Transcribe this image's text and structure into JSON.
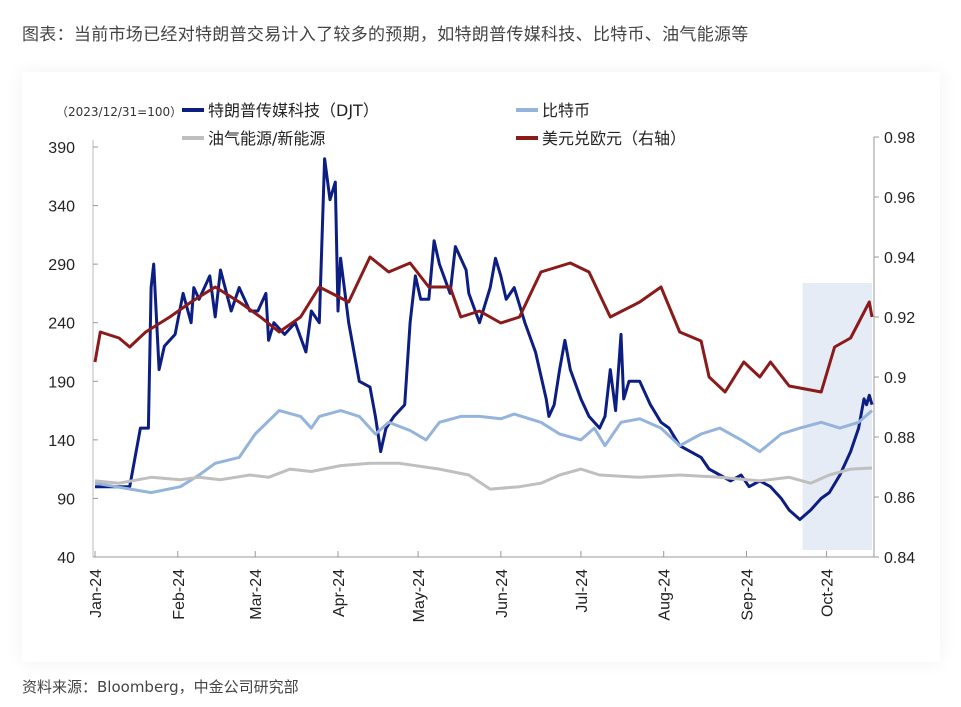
{
  "title": "图表：当前市场已经对特朗普交易计入了较多的预期，如特朗普传媒科技、比特币、油气能源等",
  "source": "资料来源：Bloomberg，中金公司研究部",
  "chart_data": {
    "type": "line",
    "base_note": "（2023/12/31=100）",
    "x_unit": "day of 2024",
    "xlim": [
      0,
      291
    ],
    "x_ticks": [
      {
        "day": 0,
        "label": "Jan-24"
      },
      {
        "day": 31,
        "label": "Feb-24"
      },
      {
        "day": 60,
        "label": "Mar-24"
      },
      {
        "day": 91,
        "label": "Apr-24"
      },
      {
        "day": 121,
        "label": "May-24"
      },
      {
        "day": 152,
        "label": "Jun-24"
      },
      {
        "day": 182,
        "label": "Jul-24"
      },
      {
        "day": 213,
        "label": "Aug-24"
      },
      {
        "day": 244,
        "label": "Sep-24"
      },
      {
        "day": 274,
        "label": "Oct-24"
      }
    ],
    "ylim_left": [
      40,
      390
    ],
    "yticks_left": [
      "390",
      "340",
      "290",
      "240",
      "190",
      "140",
      "90",
      "40"
    ],
    "ylim_right": [
      0.84,
      0.98
    ],
    "yticks_right": [
      "0.98",
      "0.96",
      "0.94",
      "0.92",
      "0.9",
      "0.88",
      "0.86",
      "0.84"
    ],
    "highlight_range_days": [
      265,
      291
    ],
    "series": [
      {
        "name": "特朗普传媒科技（DJT）",
        "axis": "left",
        "color": "#0d1e82",
        "points": [
          [
            0,
            100
          ],
          [
            13,
            100
          ],
          [
            17,
            150
          ],
          [
            20,
            150
          ],
          [
            21,
            270
          ],
          [
            22,
            290
          ],
          [
            24,
            200
          ],
          [
            26,
            220
          ],
          [
            30,
            230
          ],
          [
            33,
            265
          ],
          [
            36,
            240
          ],
          [
            37,
            270
          ],
          [
            39,
            260
          ],
          [
            43,
            280
          ],
          [
            45,
            245
          ],
          [
            47,
            285
          ],
          [
            51,
            250
          ],
          [
            54,
            270
          ],
          [
            58,
            250
          ],
          [
            61,
            250
          ],
          [
            64,
            265
          ],
          [
            65,
            225
          ],
          [
            67,
            240
          ],
          [
            71,
            230
          ],
          [
            75,
            240
          ],
          [
            79,
            215
          ],
          [
            81,
            250
          ],
          [
            84,
            240
          ],
          [
            86,
            380
          ],
          [
            88,
            345
          ],
          [
            90,
            360
          ],
          [
            91,
            250
          ],
          [
            92,
            295
          ],
          [
            95,
            240
          ],
          [
            99,
            190
          ],
          [
            103,
            185
          ],
          [
            105,
            160
          ],
          [
            107,
            130
          ],
          [
            109,
            150
          ],
          [
            112,
            160
          ],
          [
            116,
            170
          ],
          [
            118,
            240
          ],
          [
            120,
            280
          ],
          [
            122,
            260
          ],
          [
            125,
            260
          ],
          [
            127,
            310
          ],
          [
            129,
            290
          ],
          [
            133,
            265
          ],
          [
            135,
            305
          ],
          [
            139,
            285
          ],
          [
            140,
            265
          ],
          [
            144,
            240
          ],
          [
            148,
            270
          ],
          [
            150,
            295
          ],
          [
            152,
            280
          ],
          [
            154,
            260
          ],
          [
            157,
            270
          ],
          [
            161,
            240
          ],
          [
            165,
            215
          ],
          [
            169,
            175
          ],
          [
            170,
            160
          ],
          [
            172,
            170
          ],
          [
            174,
            200
          ],
          [
            176,
            225
          ],
          [
            178,
            200
          ],
          [
            182,
            175
          ],
          [
            185,
            160
          ],
          [
            189,
            150
          ],
          [
            191,
            160
          ],
          [
            193,
            200
          ],
          [
            195,
            165
          ],
          [
            197,
            230
          ],
          [
            198,
            175
          ],
          [
            200,
            190
          ],
          [
            204,
            190
          ],
          [
            208,
            170
          ],
          [
            212,
            155
          ],
          [
            215,
            150
          ],
          [
            219,
            135
          ],
          [
            223,
            130
          ],
          [
            227,
            125
          ],
          [
            230,
            115
          ],
          [
            234,
            110
          ],
          [
            238,
            105
          ],
          [
            242,
            110
          ],
          [
            245,
            100
          ],
          [
            249,
            105
          ],
          [
            253,
            100
          ],
          [
            257,
            90
          ],
          [
            260,
            80
          ],
          [
            264,
            72
          ],
          [
            268,
            80
          ],
          [
            272,
            90
          ],
          [
            275,
            95
          ],
          [
            279,
            110
          ],
          [
            283,
            130
          ],
          [
            286,
            150
          ],
          [
            288,
            175
          ],
          [
            289,
            170
          ],
          [
            290,
            178
          ],
          [
            291,
            170
          ]
        ]
      },
      {
        "name": "比特币",
        "axis": "left",
        "color": "#94b4dc",
        "points": [
          [
            0,
            103
          ],
          [
            21,
            95
          ],
          [
            32,
            100
          ],
          [
            39,
            110
          ],
          [
            45,
            120
          ],
          [
            54,
            125
          ],
          [
            60,
            145
          ],
          [
            69,
            165
          ],
          [
            77,
            160
          ],
          [
            81,
            150
          ],
          [
            84,
            160
          ],
          [
            92,
            165
          ],
          [
            99,
            160
          ],
          [
            105,
            145
          ],
          [
            110,
            155
          ],
          [
            118,
            148
          ],
          [
            124,
            140
          ],
          [
            129,
            155
          ],
          [
            137,
            160
          ],
          [
            144,
            160
          ],
          [
            152,
            158
          ],
          [
            157,
            162
          ],
          [
            167,
            155
          ],
          [
            174,
            145
          ],
          [
            182,
            140
          ],
          [
            187,
            150
          ],
          [
            191,
            135
          ],
          [
            197,
            155
          ],
          [
            204,
            158
          ],
          [
            212,
            150
          ],
          [
            219,
            135
          ],
          [
            227,
            145
          ],
          [
            234,
            150
          ],
          [
            242,
            140
          ],
          [
            249,
            130
          ],
          [
            257,
            145
          ],
          [
            264,
            150
          ],
          [
            272,
            155
          ],
          [
            279,
            150
          ],
          [
            286,
            155
          ],
          [
            291,
            165
          ]
        ]
      },
      {
        "name": "油气能源/新能源",
        "axis": "left",
        "color": "#bfbfbf",
        "points": [
          [
            0,
            105
          ],
          [
            9,
            103
          ],
          [
            21,
            108
          ],
          [
            32,
            106
          ],
          [
            39,
            108
          ],
          [
            47,
            106
          ],
          [
            58,
            110
          ],
          [
            65,
            108
          ],
          [
            73,
            115
          ],
          [
            81,
            113
          ],
          [
            92,
            118
          ],
          [
            103,
            120
          ],
          [
            114,
            120
          ],
          [
            129,
            115
          ],
          [
            140,
            110
          ],
          [
            148,
            98
          ],
          [
            159,
            100
          ],
          [
            167,
            103
          ],
          [
            174,
            110
          ],
          [
            182,
            115
          ],
          [
            189,
            110
          ],
          [
            204,
            108
          ],
          [
            219,
            110
          ],
          [
            234,
            108
          ],
          [
            249,
            105
          ],
          [
            260,
            108
          ],
          [
            268,
            103
          ],
          [
            275,
            110
          ],
          [
            283,
            115
          ],
          [
            291,
            116
          ]
        ]
      },
      {
        "name": "美元兑欧元（右轴）",
        "axis": "right",
        "color": "#8b1a1a",
        "points": [
          [
            0,
            0.905
          ],
          [
            2,
            0.915
          ],
          [
            9,
            0.913
          ],
          [
            13,
            0.91
          ],
          [
            19,
            0.915
          ],
          [
            28,
            0.92
          ],
          [
            36,
            0.925
          ],
          [
            45,
            0.93
          ],
          [
            54,
            0.925
          ],
          [
            62,
            0.92
          ],
          [
            69,
            0.915
          ],
          [
            77,
            0.92
          ],
          [
            84,
            0.93
          ],
          [
            95,
            0.925
          ],
          [
            103,
            0.94
          ],
          [
            110,
            0.935
          ],
          [
            118,
            0.938
          ],
          [
            125,
            0.93
          ],
          [
            133,
            0.93
          ],
          [
            137,
            0.92
          ],
          [
            144,
            0.922
          ],
          [
            152,
            0.918
          ],
          [
            159,
            0.92
          ],
          [
            167,
            0.935
          ],
          [
            178,
            0.938
          ],
          [
            185,
            0.935
          ],
          [
            193,
            0.92
          ],
          [
            204,
            0.925
          ],
          [
            212,
            0.93
          ],
          [
            219,
            0.915
          ],
          [
            227,
            0.912
          ],
          [
            230,
            0.9
          ],
          [
            236,
            0.895
          ],
          [
            243,
            0.905
          ],
          [
            249,
            0.9
          ],
          [
            253,
            0.905
          ],
          [
            260,
            0.897
          ],
          [
            272,
            0.895
          ],
          [
            277,
            0.91
          ],
          [
            283,
            0.913
          ],
          [
            290,
            0.925
          ],
          [
            291,
            0.92
          ]
        ]
      }
    ]
  }
}
